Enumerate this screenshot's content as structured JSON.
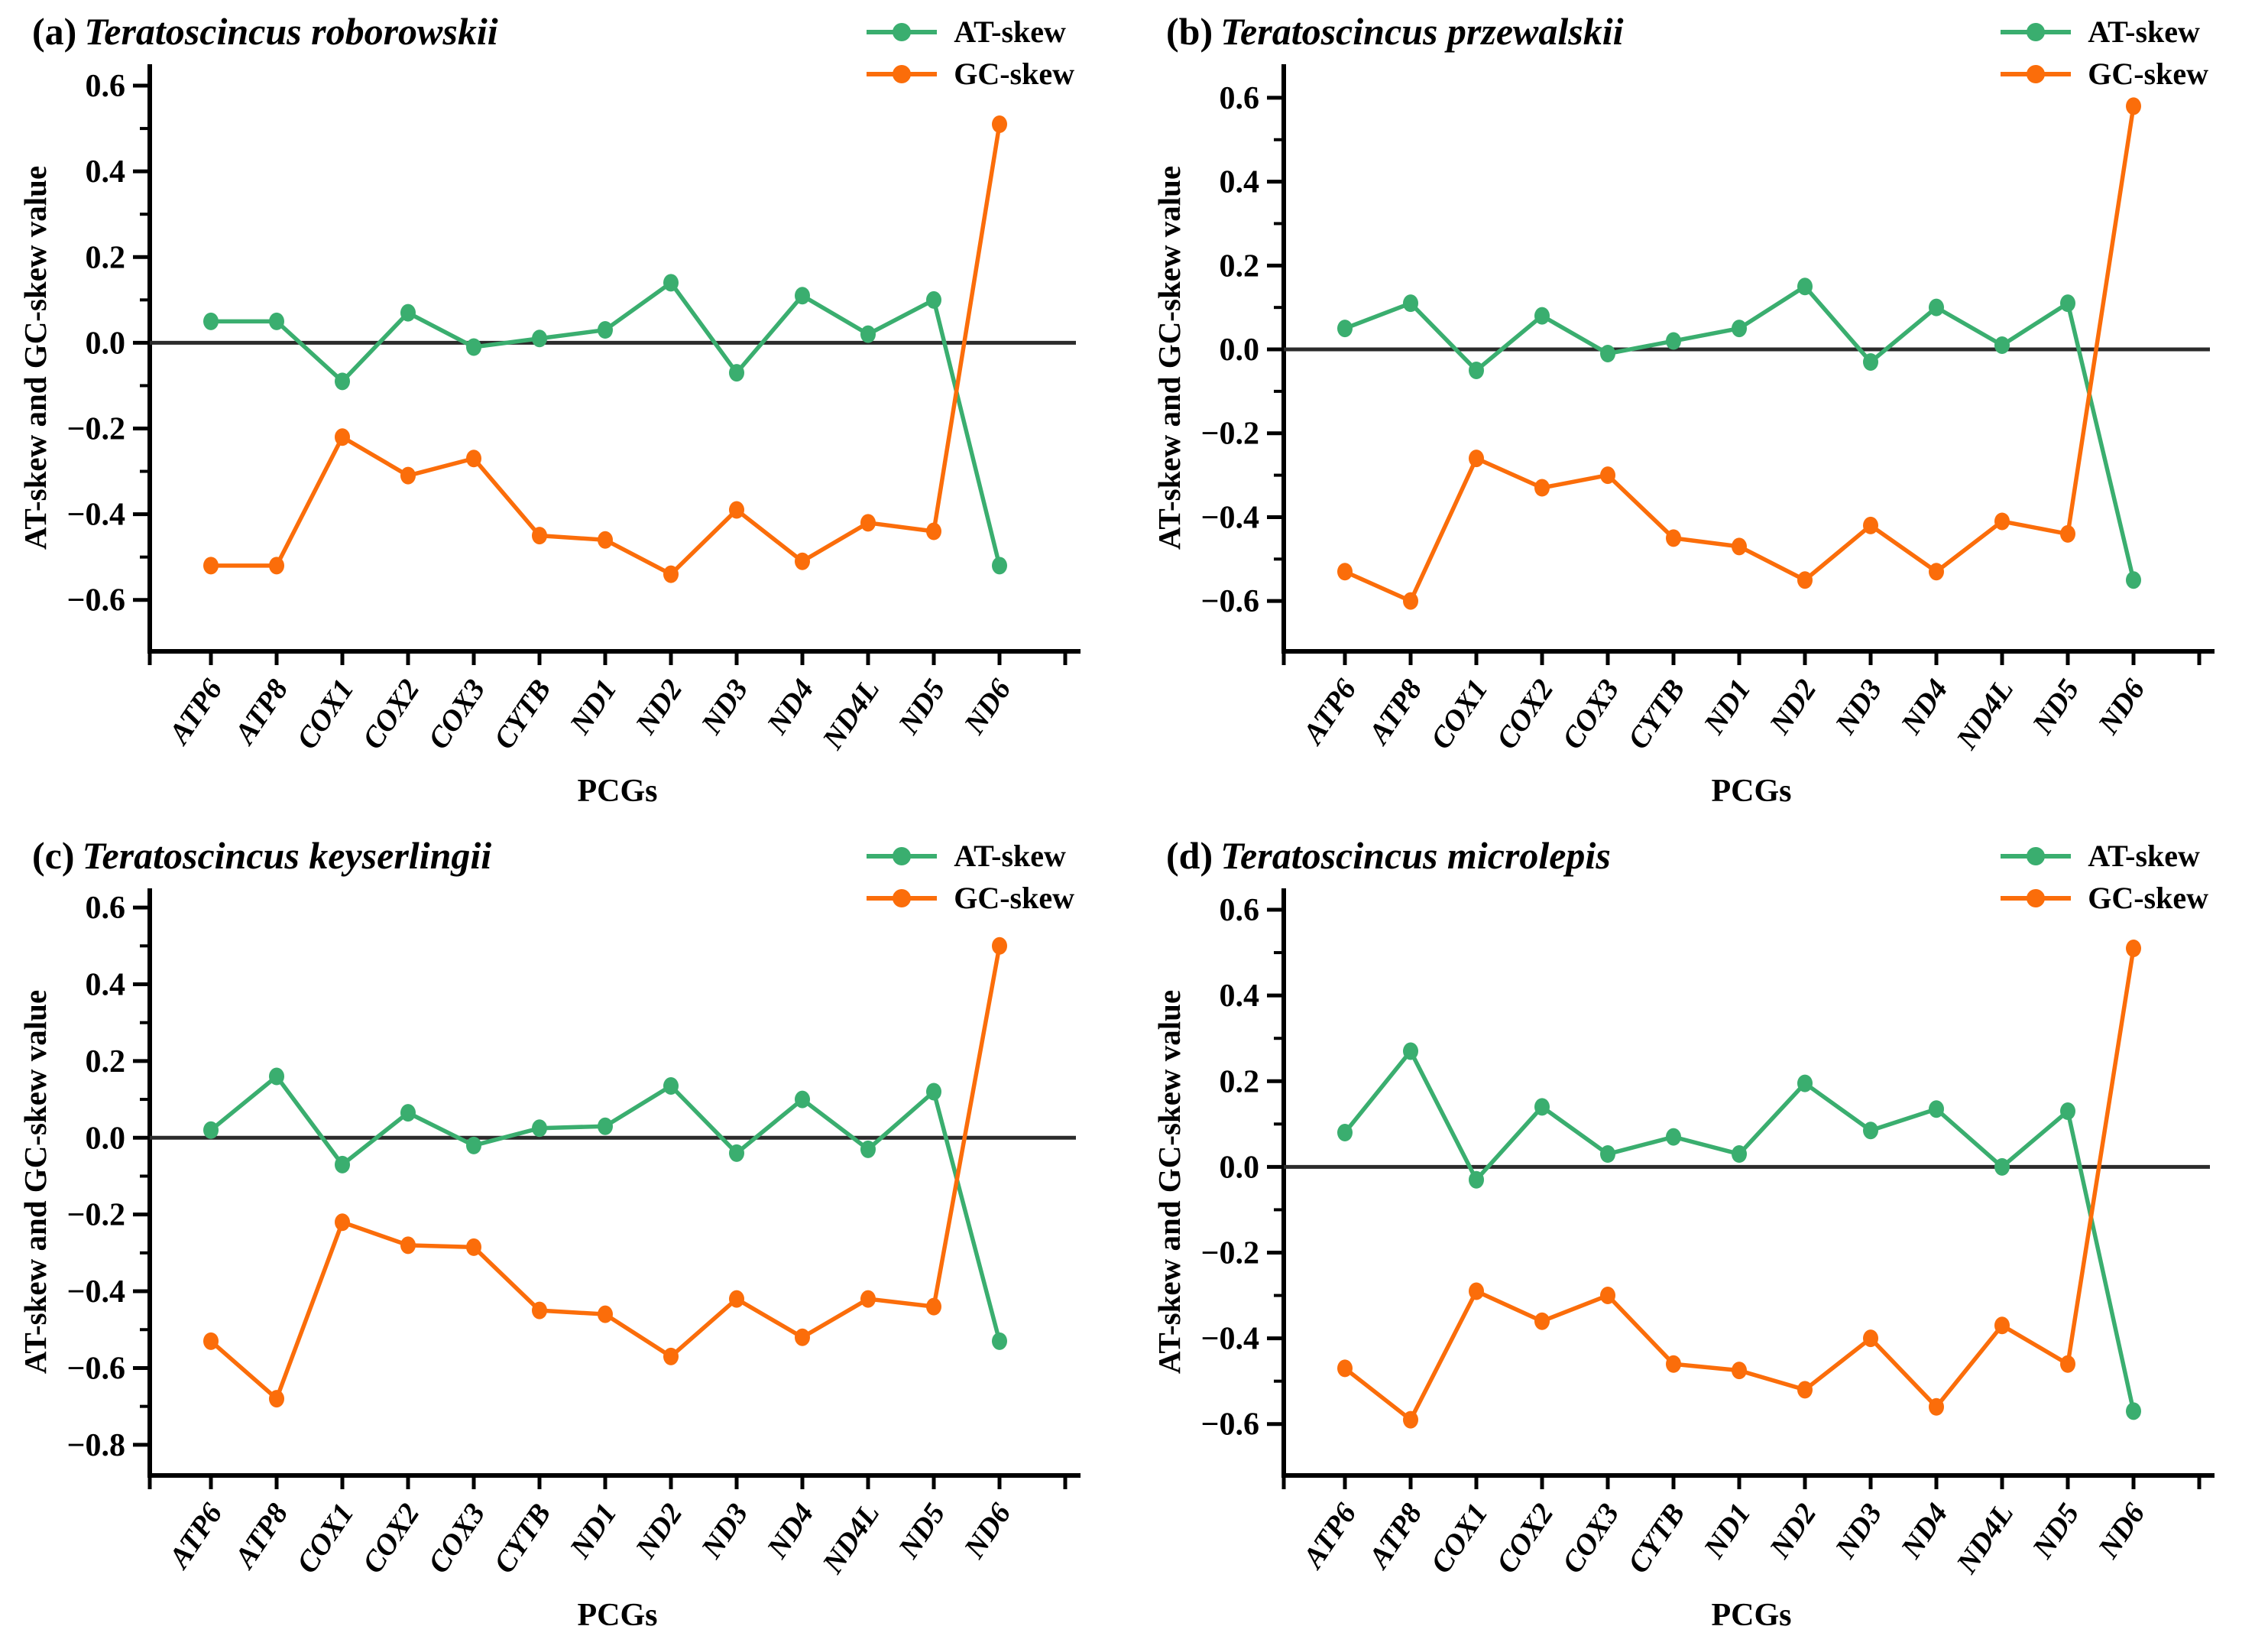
{
  "colors": {
    "at_skew": "#3AAE6F",
    "gc_skew": "#FB6D0A",
    "zero_line": "#2b2b2b",
    "axis": "#000000"
  },
  "chart_data": [
    {
      "type": "line",
      "panel_label": "(a)",
      "title": "Teratoscincus roborowskii",
      "xlabel": "PCGs",
      "ylabel": "AT-skew and GC-skew value",
      "categories": [
        "ATP6",
        "ATP8",
        "COX1",
        "COX2",
        "COX3",
        "CYTB",
        "ND1",
        "ND2",
        "ND3",
        "ND4",
        "ND4L",
        "ND5",
        "ND6"
      ],
      "series": [
        {
          "name": "AT-skew",
          "values": [
            0.05,
            0.05,
            -0.09,
            0.07,
            -0.01,
            0.01,
            0.03,
            0.14,
            -0.07,
            0.11,
            0.02,
            0.1,
            -0.52
          ]
        },
        {
          "name": "GC-skew",
          "values": [
            -0.52,
            -0.52,
            -0.22,
            -0.31,
            -0.27,
            -0.45,
            -0.46,
            -0.54,
            -0.39,
            -0.51,
            -0.42,
            -0.44,
            0.51
          ]
        }
      ],
      "ylim": [
        -0.72,
        0.65
      ],
      "yticks_labeled": [
        0.6,
        0.4,
        0.2,
        0.0,
        -0.2,
        -0.4,
        -0.6
      ],
      "yticks_minor_step": 0.1,
      "zero_line": true,
      "grid": false,
      "legend_position": "top-right"
    },
    {
      "type": "line",
      "panel_label": "(b)",
      "title": "Teratoscincus przewalskii",
      "xlabel": "PCGs",
      "ylabel": "AT-skew and GC-skew value",
      "categories": [
        "ATP6",
        "ATP8",
        "COX1",
        "COX2",
        "COX3",
        "CYTB",
        "ND1",
        "ND2",
        "ND3",
        "ND4",
        "ND4L",
        "ND5",
        "ND6"
      ],
      "series": [
        {
          "name": "AT-skew",
          "values": [
            0.05,
            0.11,
            -0.05,
            0.08,
            -0.01,
            0.02,
            0.05,
            0.15,
            -0.03,
            0.1,
            0.01,
            0.11,
            -0.55
          ]
        },
        {
          "name": "GC-skew",
          "values": [
            -0.53,
            -0.6,
            -0.26,
            -0.33,
            -0.3,
            -0.45,
            -0.47,
            -0.55,
            -0.42,
            -0.53,
            -0.41,
            -0.44,
            0.58
          ]
        }
      ],
      "ylim": [
        -0.72,
        0.68
      ],
      "yticks_labeled": [
        0.6,
        0.4,
        0.2,
        0.0,
        -0.2,
        -0.4,
        -0.6
      ],
      "yticks_minor_step": 0.1,
      "zero_line": true,
      "grid": false,
      "legend_position": "top-right"
    },
    {
      "type": "line",
      "panel_label": "(c)",
      "title": "Teratoscincus keyserlingii",
      "xlabel": "PCGs",
      "ylabel": "AT-skew and GC-skew value",
      "categories": [
        "ATP6",
        "ATP8",
        "COX1",
        "COX2",
        "COX3",
        "CYTB",
        "ND1",
        "ND2",
        "ND3",
        "ND4",
        "ND4L",
        "ND5",
        "ND6"
      ],
      "series": [
        {
          "name": "AT-skew",
          "values": [
            0.02,
            0.16,
            -0.07,
            0.065,
            -0.02,
            0.025,
            0.03,
            0.135,
            -0.04,
            0.1,
            -0.03,
            0.12,
            -0.53
          ]
        },
        {
          "name": "GC-skew",
          "values": [
            -0.53,
            -0.68,
            -0.22,
            -0.28,
            -0.285,
            -0.45,
            -0.46,
            -0.57,
            -0.42,
            -0.52,
            -0.42,
            -0.44,
            0.5
          ]
        }
      ],
      "ylim": [
        -0.88,
        0.65
      ],
      "yticks_labeled": [
        0.6,
        0.4,
        0.2,
        0.0,
        -0.2,
        -0.4,
        -0.6,
        -0.8
      ],
      "yticks_minor_step": 0.1,
      "zero_line": true,
      "grid": false,
      "legend_position": "top-right"
    },
    {
      "type": "line",
      "panel_label": "(d)",
      "title": "Teratoscincus microlepis",
      "xlabel": "PCGs",
      "ylabel": "AT-skew and GC-skew value",
      "categories": [
        "ATP6",
        "ATP8",
        "COX1",
        "COX2",
        "COX3",
        "CYTB",
        "ND1",
        "ND2",
        "ND3",
        "ND4",
        "ND4L",
        "ND5",
        "ND6"
      ],
      "series": [
        {
          "name": "AT-skew",
          "values": [
            0.08,
            0.27,
            -0.03,
            0.14,
            0.03,
            0.07,
            0.03,
            0.195,
            0.085,
            0.135,
            0.0,
            0.13,
            -0.57
          ]
        },
        {
          "name": "GC-skew",
          "values": [
            -0.47,
            -0.59,
            -0.29,
            -0.36,
            -0.3,
            -0.46,
            -0.475,
            -0.52,
            -0.4,
            -0.56,
            -0.37,
            -0.46,
            0.51
          ]
        }
      ],
      "ylim": [
        -0.72,
        0.65
      ],
      "yticks_labeled": [
        0.6,
        0.4,
        0.2,
        0.0,
        -0.2,
        -0.4,
        -0.6
      ],
      "yticks_minor_step": 0.1,
      "zero_line": true,
      "grid": false,
      "legend_position": "top-right"
    }
  ]
}
